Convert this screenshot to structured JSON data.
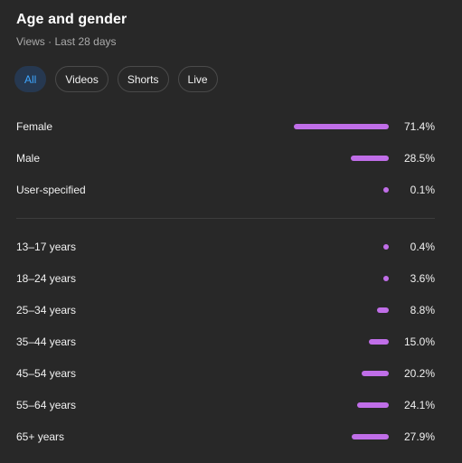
{
  "header": {
    "title": "Age and gender",
    "subtitle": "Views · Last 28 days"
  },
  "filters": [
    {
      "label": "All",
      "selected": true
    },
    {
      "label": "Videos",
      "selected": false
    },
    {
      "label": "Shorts",
      "selected": false
    },
    {
      "label": "Live",
      "selected": false
    }
  ],
  "colors": {
    "bar": "#c06ee8",
    "active_chip_text": "#3ea6ff"
  },
  "gender": [
    {
      "label": "Female",
      "percent_text": "71.4%",
      "value": 71.4
    },
    {
      "label": "Male",
      "percent_text": "28.5%",
      "value": 28.5
    },
    {
      "label": "User-specified",
      "percent_text": "0.1%",
      "value": 0.1
    }
  ],
  "age": [
    {
      "label": "13–17 years",
      "percent_text": "0.4%",
      "value": 0.4
    },
    {
      "label": "18–24 years",
      "percent_text": "3.6%",
      "value": 3.6
    },
    {
      "label": "25–34 years",
      "percent_text": "8.8%",
      "value": 8.8
    },
    {
      "label": "35–44 years",
      "percent_text": "15.0%",
      "value": 15.0
    },
    {
      "label": "45–54 years",
      "percent_text": "20.2%",
      "value": 20.2
    },
    {
      "label": "55–64 years",
      "percent_text": "24.1%",
      "value": 24.1
    },
    {
      "label": "65+ years",
      "percent_text": "27.9%",
      "value": 27.9
    }
  ]
}
